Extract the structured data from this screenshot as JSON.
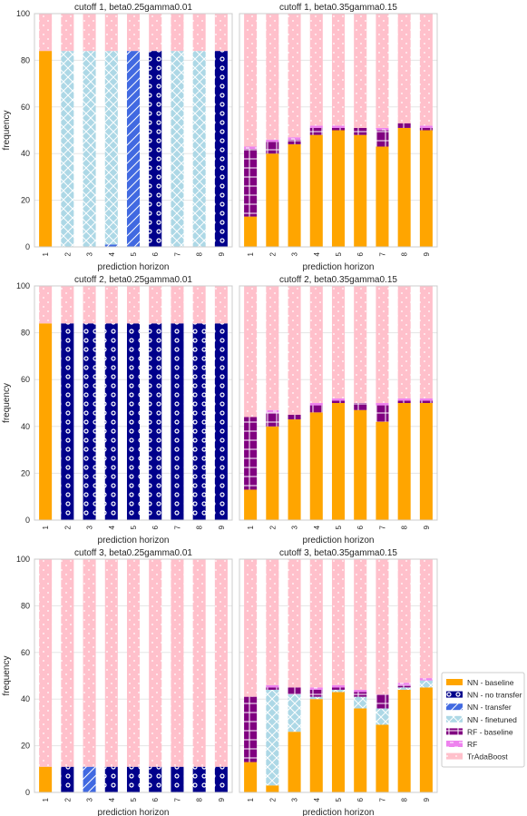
{
  "chart_data": {
    "type": "bar",
    "stacked": true,
    "categories": [
      "1",
      "2",
      "3",
      "4",
      "5",
      "6",
      "7",
      "8",
      "9"
    ],
    "xlabel": "prediction horizon",
    "ylabel": "frequency",
    "ylim": [
      0,
      100
    ],
    "yticks": [
      0,
      20,
      40,
      60,
      80,
      100
    ],
    "grid": true,
    "legend_position": "right",
    "legend": [
      {
        "key": "nn_baseline",
        "label": "NN - baseline",
        "color": "#ffa500",
        "pattern": "none"
      },
      {
        "key": "nn_no_transfer",
        "label": "NN - no transfer",
        "color": "#00008b",
        "pattern": "circles"
      },
      {
        "key": "nn_transfer",
        "label": "NN - transfer",
        "color": "#4169e1",
        "pattern": "diagonal"
      },
      {
        "key": "nn_finetuned",
        "label": "NN - finetuned",
        "color": "#add8e6",
        "pattern": "crosshatch"
      },
      {
        "key": "rf_baseline",
        "label": "RF - baseline",
        "color": "#800080",
        "pattern": "plus"
      },
      {
        "key": "rf",
        "label": "RF",
        "color": "#ee82ee",
        "pattern": "dashes"
      },
      {
        "key": "tradaboost",
        "label": "TrAdaBoost",
        "color": "#ffc0cb",
        "pattern": "dots"
      }
    ],
    "panels": [
      {
        "title": "cutoff 1, beta0.25gamma0.01",
        "series": {
          "nn_baseline": [
            84,
            0,
            0,
            0,
            0,
            0,
            0,
            0,
            0
          ],
          "nn_no_transfer": [
            0,
            0,
            0,
            0,
            0,
            84,
            0,
            0,
            84
          ],
          "nn_transfer": [
            0,
            0,
            0,
            1,
            84,
            0,
            0,
            0,
            0
          ],
          "nn_finetuned": [
            0,
            84,
            84,
            83,
            0,
            0,
            84,
            84,
            0
          ],
          "rf_baseline": [
            0,
            0,
            0,
            0,
            0,
            0,
            0,
            0,
            0
          ],
          "rf": [
            0,
            0,
            0,
            0,
            0,
            0,
            0,
            0,
            0
          ],
          "tradaboost": [
            16,
            16,
            16,
            16,
            16,
            16,
            16,
            16,
            16
          ]
        }
      },
      {
        "title": "cutoff 1, beta0.35gamma0.15",
        "series": {
          "nn_baseline": [
            13,
            40,
            44,
            48,
            50,
            48,
            43,
            51,
            50
          ],
          "nn_no_transfer": [
            0,
            0,
            0,
            0,
            0,
            0,
            0,
            0,
            0
          ],
          "nn_transfer": [
            0,
            0,
            0,
            0,
            0,
            0,
            0,
            0,
            0
          ],
          "nn_finetuned": [
            0,
            0,
            0,
            0,
            0,
            0,
            0,
            0,
            0
          ],
          "rf_baseline": [
            29,
            5,
            2,
            3,
            1,
            3,
            7,
            2,
            1
          ],
          "rf": [
            1,
            1,
            1,
            1,
            1,
            0,
            1,
            0,
            1
          ],
          "tradaboost": [
            57,
            54,
            53,
            48,
            48,
            49,
            49,
            47,
            48
          ]
        }
      },
      {
        "title": "cutoff 2, beta0.25gamma0.01",
        "series": {
          "nn_baseline": [
            84,
            0,
            0,
            0,
            0,
            0,
            0,
            0,
            0
          ],
          "nn_no_transfer": [
            0,
            84,
            84,
            84,
            84,
            84,
            84,
            84,
            84
          ],
          "nn_transfer": [
            0,
            0,
            0,
            0,
            0,
            0,
            0,
            0,
            0
          ],
          "nn_finetuned": [
            0,
            0,
            0,
            0,
            0,
            0,
            0,
            0,
            0
          ],
          "rf_baseline": [
            0,
            0,
            0,
            0,
            0,
            0,
            0,
            0,
            0
          ],
          "rf": [
            0,
            0,
            0,
            0,
            0,
            0,
            0,
            0,
            0
          ],
          "tradaboost": [
            16,
            16,
            16,
            16,
            16,
            16,
            16,
            16,
            16
          ]
        }
      },
      {
        "title": "cutoff 2, beta0.35gamma0.15",
        "series": {
          "nn_baseline": [
            13,
            40,
            43,
            46,
            50,
            47,
            42,
            50,
            50
          ],
          "nn_no_transfer": [
            0,
            0,
            0,
            0,
            0,
            0,
            0,
            0,
            0
          ],
          "nn_transfer": [
            0,
            0,
            0,
            0,
            0,
            0,
            0,
            0,
            0
          ],
          "nn_finetuned": [
            0,
            0,
            0,
            0,
            0,
            0,
            0,
            0,
            0
          ],
          "rf_baseline": [
            31,
            6,
            2,
            3,
            1,
            3,
            7,
            1,
            1
          ],
          "rf": [
            0,
            1,
            0,
            1,
            1,
            0,
            1,
            1,
            1
          ],
          "tradaboost": [
            56,
            53,
            55,
            50,
            48,
            50,
            50,
            48,
            48
          ]
        }
      },
      {
        "title": "cutoff 3, beta0.25gamma0.01",
        "series": {
          "nn_baseline": [
            11,
            0,
            0,
            0,
            0,
            0,
            0,
            0,
            0
          ],
          "nn_no_transfer": [
            0,
            11,
            0,
            11,
            11,
            11,
            11,
            11,
            11
          ],
          "nn_transfer": [
            0,
            0,
            11,
            0,
            0,
            0,
            0,
            0,
            0
          ],
          "nn_finetuned": [
            0,
            0,
            0,
            0,
            0,
            0,
            0,
            0,
            0
          ],
          "rf_baseline": [
            0,
            0,
            0,
            0,
            0,
            0,
            0,
            0,
            0
          ],
          "rf": [
            0,
            0,
            0,
            0,
            0,
            0,
            0,
            0,
            0
          ],
          "tradaboost": [
            89,
            89,
            89,
            89,
            89,
            89,
            89,
            89,
            89
          ]
        }
      },
      {
        "title": "cutoff 3, beta0.35gamma0.15",
        "series": {
          "nn_baseline": [
            13,
            3,
            26,
            40,
            43,
            36,
            29,
            44,
            45
          ],
          "nn_no_transfer": [
            0,
            0,
            0,
            0,
            0,
            0,
            0,
            0,
            0
          ],
          "nn_transfer": [
            0,
            0,
            0,
            0,
            0,
            0,
            0,
            0,
            0
          ],
          "nn_finetuned": [
            0,
            41,
            16,
            1,
            1,
            5,
            7,
            1,
            3
          ],
          "rf_baseline": [
            28,
            1,
            3,
            3,
            1,
            2,
            6,
            1,
            0
          ],
          "rf": [
            0,
            1,
            0,
            1,
            1,
            1,
            0,
            1,
            1
          ],
          "tradaboost": [
            59,
            54,
            55,
            55,
            54,
            56,
            58,
            53,
            51
          ]
        }
      }
    ]
  }
}
